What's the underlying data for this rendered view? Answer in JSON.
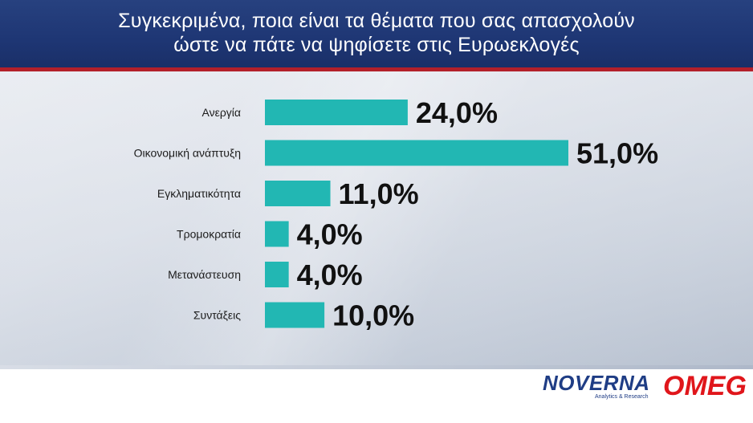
{
  "header": {
    "title_line1": "Συγκεκριμένα, ποια είναι τα θέματα που σας απασχολούν",
    "title_line2": "ώστε να πάτε να ψηφίσετε στις Ευρωεκλογές"
  },
  "chart_data": {
    "type": "bar",
    "orientation": "horizontal",
    "categories": [
      "Ανεργία",
      "Οικονομική ανάπτυξη",
      "Εγκληματικότητα",
      "Τρομοκρατία",
      "Μετανάστευση",
      "Συντάξεις"
    ],
    "values": [
      24.0,
      51.0,
      11.0,
      4.0,
      4.0,
      10.0
    ],
    "value_labels": [
      "24,0%",
      "51,0%",
      "11,0%",
      "4,0%",
      "4,0%",
      "10,0%"
    ],
    "bar_color": "#22b7b3",
    "title": "",
    "xlabel": "",
    "ylabel": ""
  },
  "footer": {
    "brand1": "NOVERNA",
    "brand1_tagline": "Analytics & Research",
    "brand2": "OMEG",
    "brand1_color": "#1f3d85",
    "brand2_color": "#e0161b"
  }
}
